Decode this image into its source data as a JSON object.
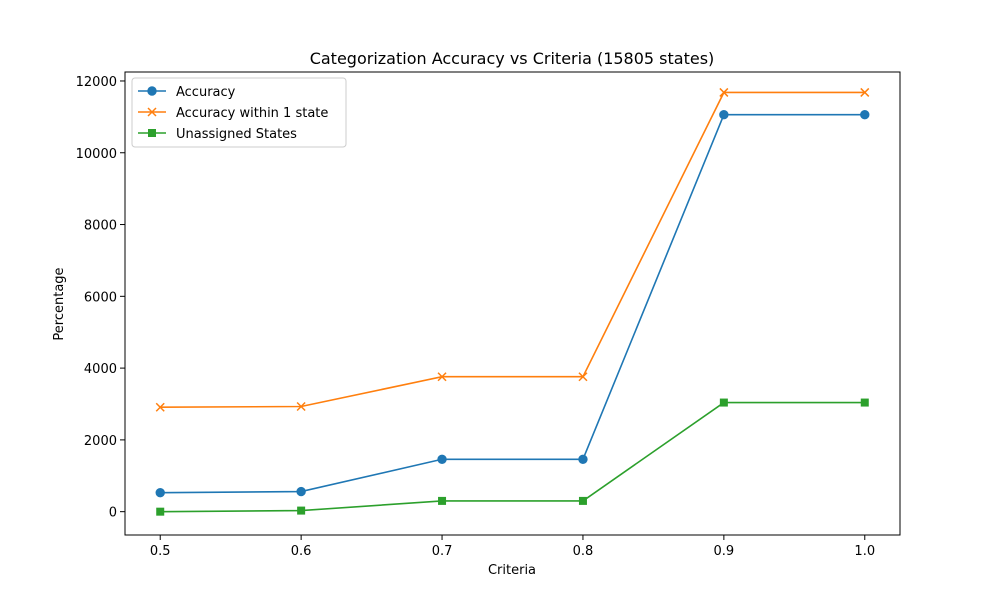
{
  "chart_data": {
    "type": "line",
    "title": "Categorization Accuracy vs Criteria (15805 states)",
    "xlabel": "Criteria",
    "ylabel": "Percentage",
    "x": [
      0.5,
      0.6,
      0.7,
      0.8,
      0.9,
      1.0
    ],
    "xticks": [
      "0.5",
      "0.6",
      "0.7",
      "0.8",
      "0.9",
      "1.0"
    ],
    "yticks": [
      "0",
      "2000",
      "4000",
      "6000",
      "8000",
      "10000",
      "12000"
    ],
    "xlim": [
      0.475,
      1.025
    ],
    "ylim": [
      -650,
      12250
    ],
    "grid": false,
    "legend_position": "upper-left",
    "series": [
      {
        "name": "Accuracy",
        "color": "#1f77b4",
        "marker": "circle",
        "values": [
          530,
          560,
          1460,
          1460,
          11060,
          11060
        ]
      },
      {
        "name": "Accuracy within 1 state",
        "color": "#ff7f0e",
        "marker": "x",
        "values": [
          2910,
          2930,
          3760,
          3760,
          11680,
          11680
        ]
      },
      {
        "name": "Unassigned States",
        "color": "#2ca02c",
        "marker": "square",
        "values": [
          0,
          30,
          300,
          300,
          3040,
          3040
        ]
      }
    ]
  }
}
